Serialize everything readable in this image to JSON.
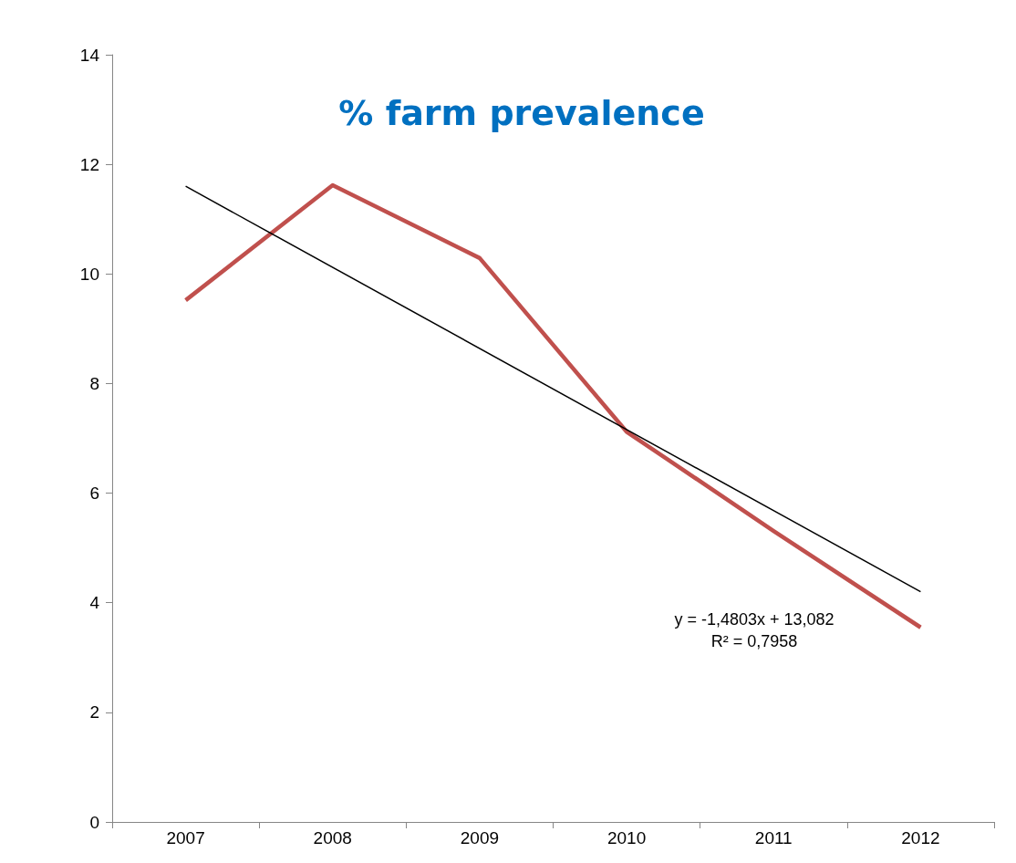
{
  "chart_data": {
    "type": "line",
    "title": "% farm prevalence",
    "categories": [
      "2007",
      "2008",
      "2009",
      "2010",
      "2011",
      "2012"
    ],
    "series": [
      {
        "color": "#c0504d",
        "values": [
          9.52,
          11.62,
          10.29,
          7.12,
          5.31,
          3.55
        ]
      },
      {
        "type": "line",
        "color": "#000000",
        "values": [
          11.6,
          null,
          null,
          null,
          null,
          4.2
        ]
      }
    ],
    "ylim": [
      0,
      14
    ],
    "yticks": [
      0,
      2,
      4,
      6,
      8,
      10,
      12,
      14
    ],
    "grid": false,
    "marker": "none",
    "annotations": [
      "y = -1,4803x + 13,082",
      "R² = 0,7958"
    ]
  }
}
